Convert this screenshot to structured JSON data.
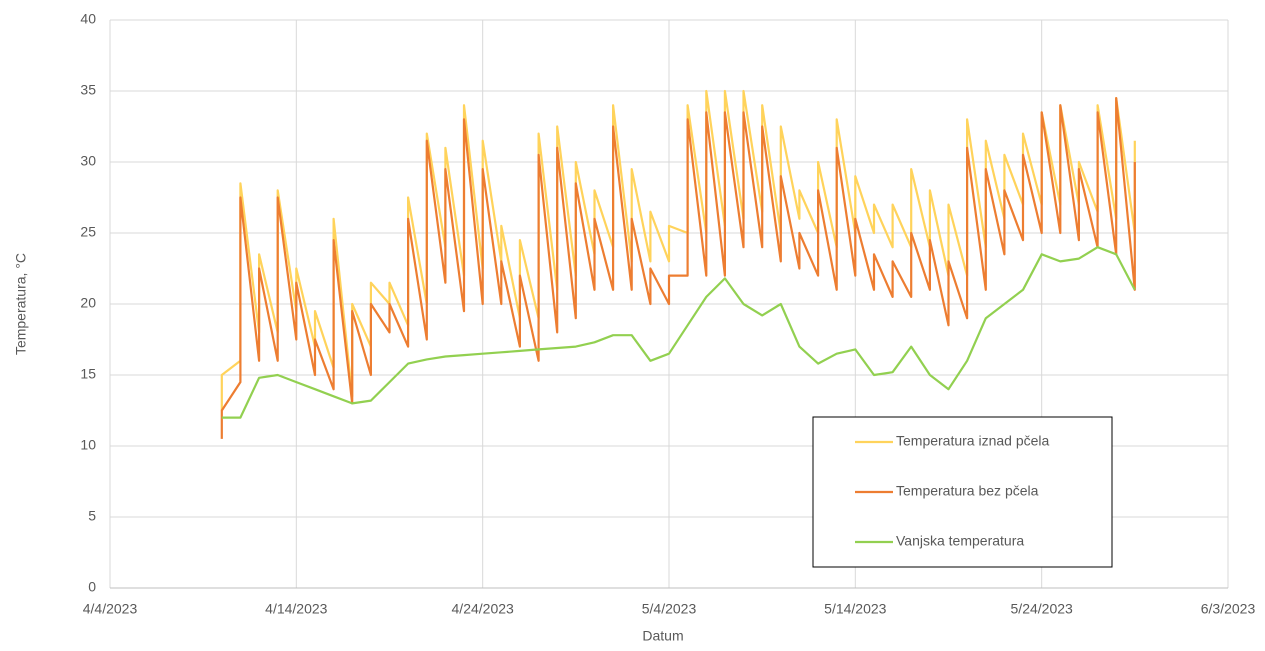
{
  "chart_data": {
    "type": "line",
    "x_label": "Datum",
    "y_label": "Temperatura, °C",
    "x": [
      "4/10/2023",
      "4/10/2023",
      "4/11/2023",
      "4/11/2023",
      "4/12/2023",
      "4/12/2023",
      "4/13/2023",
      "4/13/2023",
      "4/14/2023",
      "4/14/2023",
      "4/15/2023",
      "4/15/2023",
      "4/16/2023",
      "4/16/2023",
      "4/17/2023",
      "4/17/2023",
      "4/18/2023",
      "4/18/2023",
      "4/19/2023",
      "4/19/2023",
      "4/20/2023",
      "4/20/2023",
      "4/21/2023",
      "4/21/2023",
      "4/22/2023",
      "4/22/2023",
      "4/23/2023",
      "4/23/2023",
      "4/24/2023",
      "4/24/2023",
      "4/25/2023",
      "4/25/2023",
      "4/26/2023",
      "4/26/2023",
      "4/27/2023",
      "4/27/2023",
      "4/28/2023",
      "4/28/2023",
      "4/29/2023",
      "4/29/2023",
      "4/30/2023",
      "4/30/2023",
      "5/1/2023",
      "5/1/2023",
      "5/2/2023",
      "5/2/2023",
      "5/3/2023",
      "5/3/2023",
      "5/4/2023",
      "5/4/2023",
      "5/5/2023",
      "5/5/2023",
      "5/6/2023",
      "5/6/2023",
      "5/7/2023",
      "5/7/2023",
      "5/8/2023",
      "5/8/2023",
      "5/9/2023",
      "5/9/2023",
      "5/10/2023",
      "5/10/2023",
      "5/11/2023",
      "5/11/2023",
      "5/12/2023",
      "5/12/2023",
      "5/13/2023",
      "5/13/2023",
      "5/14/2023",
      "5/14/2023",
      "5/15/2023",
      "5/15/2023",
      "5/16/2023",
      "5/16/2023",
      "5/17/2023",
      "5/17/2023",
      "5/18/2023",
      "5/18/2023",
      "5/19/2023",
      "5/19/2023",
      "5/20/2023",
      "5/20/2023",
      "5/21/2023",
      "5/21/2023",
      "5/22/2023",
      "5/22/2023",
      "5/23/2023",
      "5/23/2023",
      "5/24/2023",
      "5/24/2023",
      "5/25/2023",
      "5/25/2023",
      "5/26/2023",
      "5/26/2023",
      "5/27/2023",
      "5/27/2023",
      "5/28/2023",
      "5/28/2023",
      "5/29/2023",
      "5/29/2023"
    ],
    "series": [
      {
        "name": "Temperatura iznad pčela",
        "color": "#ffd35b",
        "values": [
          12.5,
          15,
          16,
          28.5,
          18,
          23.5,
          18,
          28,
          19.5,
          22.5,
          17,
          19.5,
          15.5,
          26,
          13.5,
          20,
          17,
          21.5,
          20,
          21.5,
          18.5,
          27.5,
          20,
          32,
          24,
          31,
          22,
          34,
          22.5,
          31.5,
          23,
          25.5,
          19,
          24.5,
          19,
          32,
          21,
          32.5,
          22,
          30,
          23.5,
          28,
          24,
          34,
          23,
          29.5,
          23,
          26.5,
          23,
          25.5,
          25,
          34,
          25,
          35,
          25.5,
          35,
          26,
          35,
          26.5,
          34,
          25,
          32.5,
          26,
          28,
          25,
          30,
          24,
          33,
          25,
          29,
          25,
          27,
          24,
          27,
          24,
          29.5,
          24,
          28,
          22,
          27,
          22,
          33,
          24,
          31.5,
          26,
          30.5,
          27,
          32,
          27,
          33.5,
          27,
          34,
          27,
          30,
          26.5,
          34,
          26,
          34.5,
          25,
          31.5
        ]
      },
      {
        "name": "Temperatura bez pčela",
        "color": "#ed7d31",
        "values": [
          10.5,
          12.5,
          14.5,
          27.5,
          16,
          22.5,
          16,
          27.5,
          17.5,
          21.5,
          15,
          17.5,
          14,
          24.5,
          13,
          19.5,
          15,
          20,
          18,
          20,
          17,
          26,
          17.5,
          31.5,
          21.5,
          29.5,
          19.5,
          33,
          20,
          29.5,
          20,
          23,
          17,
          22,
          16,
          30.5,
          18,
          31,
          19,
          28.5,
          21,
          26,
          21,
          32.5,
          21,
          26,
          20,
          22.5,
          20,
          22,
          22,
          33,
          22,
          33.5,
          22,
          33.5,
          24,
          33.5,
          24,
          32.5,
          23,
          29,
          22.5,
          25,
          22,
          28,
          21,
          31,
          22,
          26,
          21,
          23.5,
          20.5,
          23,
          20.5,
          25,
          21,
          24.5,
          18.5,
          23,
          19,
          31,
          21,
          29.5,
          23.5,
          28,
          24.5,
          30.5,
          25,
          33.5,
          25,
          34,
          24.5,
          29.5,
          24,
          33.5,
          23.5,
          34.5,
          21,
          30
        ]
      },
      {
        "name": "Vanjska temperatura",
        "color": "#92d050",
        "values": [
          12,
          12,
          12,
          12,
          14.8,
          14.8,
          15,
          15,
          14.5,
          14.5,
          14,
          14,
          13.5,
          13.5,
          13,
          13,
          13.2,
          13.2,
          14.5,
          14.5,
          15.8,
          15.8,
          16.1,
          16.1,
          16.3,
          16.3,
          16.4,
          16.4,
          16.5,
          16.5,
          16.6,
          16.6,
          16.7,
          16.7,
          16.8,
          16.8,
          16.9,
          16.9,
          17,
          17,
          17.3,
          17.3,
          17.8,
          17.8,
          17.8,
          17.8,
          16,
          16,
          16.5,
          16.5,
          18.5,
          18.5,
          20.5,
          20.5,
          21.8,
          21.8,
          20,
          20,
          19.2,
          19.2,
          20,
          20,
          17,
          17,
          15.8,
          15.8,
          16.5,
          16.5,
          16.8,
          16.8,
          15,
          15,
          15.2,
          15.2,
          17,
          17,
          15,
          15,
          14,
          14,
          16,
          16,
          19,
          19,
          20,
          20,
          21,
          21,
          23.5,
          23.5,
          23,
          23,
          23.2,
          23.2,
          24,
          24,
          23.5,
          23.5,
          21,
          21
        ]
      }
    ],
    "xlim": [
      "4/4/2023",
      "6/3/2023"
    ],
    "xticks": [
      "4/4/2023",
      "4/14/2023",
      "4/24/2023",
      "5/4/2023",
      "5/14/2023",
      "5/24/2023",
      "6/3/2023"
    ],
    "ylim": [
      0,
      40
    ],
    "yticks": [
      0,
      5,
      10,
      15,
      20,
      25,
      30,
      35,
      40
    ],
    "grid": true,
    "legend": "lower right"
  }
}
